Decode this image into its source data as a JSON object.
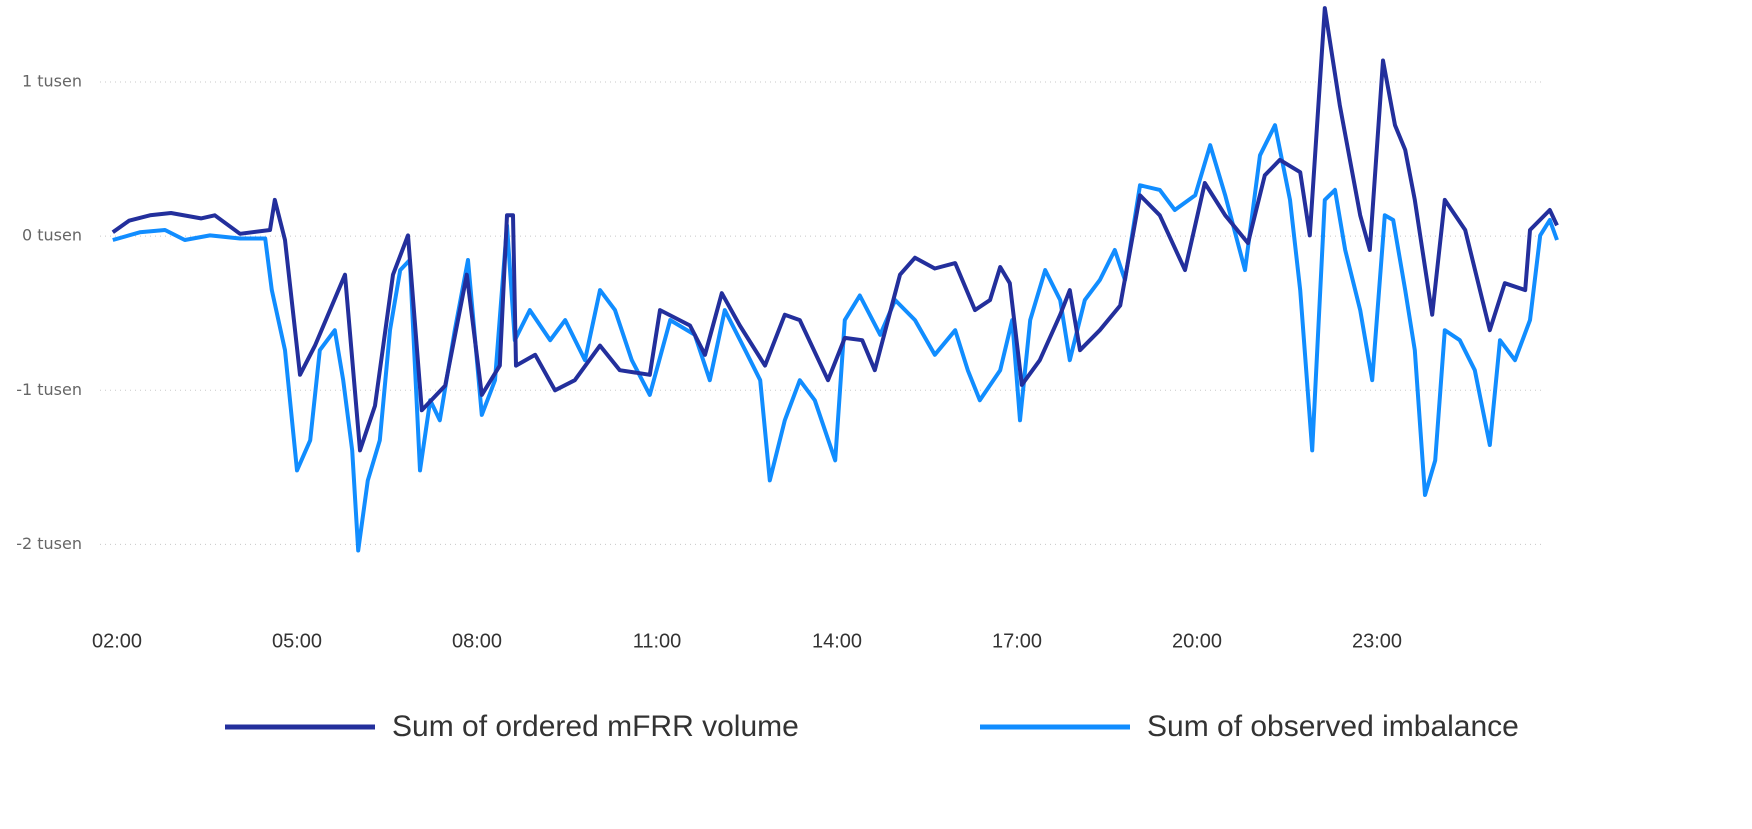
{
  "chart_data": {
    "type": "line",
    "xlim": [
      1.9,
      26.1
    ],
    "xticks": [
      {
        "value": 2,
        "label": "02:00"
      },
      {
        "value": 5,
        "label": "05:00"
      },
      {
        "value": 8,
        "label": "08:00"
      },
      {
        "value": 11,
        "label": "11:00"
      },
      {
        "value": 14,
        "label": "14:00"
      },
      {
        "value": 17,
        "label": "17:00"
      },
      {
        "value": 20,
        "label": "20:00"
      },
      {
        "value": 23,
        "label": "23:00"
      }
    ],
    "ylim": [
      -2400,
      1500
    ],
    "yticks": [
      {
        "value": -2000,
        "label": "-2 tusen"
      },
      {
        "value": -1000,
        "label": "-1 tusen"
      },
      {
        "value": 0,
        "label": "0 tusen"
      },
      {
        "value": 1000,
        "label": "1 tusen"
      }
    ],
    "grid": true,
    "legend": "bottom",
    "series": [
      {
        "name": "Sum of ordered mFRR volume",
        "color": "#232f9c",
        "x": [
          1.93,
          2.2,
          2.55,
          2.9,
          3.4,
          3.63,
          4.05,
          4.55,
          4.63,
          4.8,
          5.05,
          5.3,
          5.8,
          6.05,
          6.3,
          6.6,
          6.85,
          7.08,
          7.47,
          7.83,
          8.08,
          8.38,
          8.5,
          8.6,
          8.65,
          8.97,
          9.3,
          9.63,
          10.05,
          10.38,
          10.88,
          11.05,
          11.55,
          11.8,
          12.08,
          12.38,
          12.8,
          13.13,
          13.38,
          13.85,
          14.13,
          14.42,
          14.63,
          15.05,
          15.3,
          15.63,
          15.97,
          16.3,
          16.55,
          16.72,
          16.88,
          17.08,
          17.38,
          17.72,
          17.88,
          18.05,
          18.38,
          18.72,
          19.05,
          19.38,
          19.8,
          20.13,
          20.47,
          20.85,
          21.13,
          21.38,
          21.72,
          21.88,
          22.13,
          22.38,
          22.72,
          22.88,
          23.1,
          23.3,
          23.47,
          23.63,
          23.92,
          24.13,
          24.47,
          24.88,
          25.13,
          25.47,
          25.55,
          25.88,
          26.0
        ],
        "values": [
          25,
          100,
          135,
          150,
          115,
          135,
          15,
          40,
          235,
          -25,
          -900,
          -710,
          -250,
          -1390,
          -1100,
          -250,
          5,
          -1130,
          -970,
          -250,
          -1030,
          -840,
          135,
          135,
          -840,
          -770,
          -1000,
          -935,
          -710,
          -870,
          -900,
          -480,
          -580,
          -770,
          -370,
          -580,
          -840,
          -510,
          -545,
          -935,
          -660,
          -675,
          -870,
          -250,
          -140,
          -210,
          -175,
          -480,
          -415,
          -200,
          -305,
          -965,
          -805,
          -510,
          -350,
          -740,
          -610,
          -450,
          265,
          135,
          -220,
          345,
          135,
          -45,
          395,
          495,
          415,
          5,
          1480,
          850,
          135,
          -90,
          1140,
          720,
          560,
          235,
          -510,
          235,
          40,
          -610,
          -305,
          -350,
          40,
          170,
          70
        ]
      },
      {
        "name": "Sum of observed imbalance",
        "color": "#118dff",
        "x": [
          1.93,
          2.38,
          2.8,
          3.13,
          3.55,
          4.05,
          4.47,
          4.58,
          4.8,
          5.0,
          5.22,
          5.38,
          5.63,
          5.77,
          5.92,
          6.02,
          6.18,
          6.38,
          6.55,
          6.72,
          6.88,
          7.05,
          7.22,
          7.38,
          7.63,
          7.85,
          8.08,
          8.3,
          8.5,
          8.63,
          8.88,
          9.22,
          9.47,
          9.8,
          10.05,
          10.3,
          10.58,
          10.88,
          11.22,
          11.63,
          11.88,
          12.13,
          12.47,
          12.72,
          12.88,
          13.13,
          13.38,
          13.63,
          13.97,
          14.13,
          14.38,
          14.72,
          14.97,
          15.3,
          15.63,
          15.97,
          16.18,
          16.38,
          16.72,
          16.92,
          17.05,
          17.22,
          17.47,
          17.72,
          17.88,
          18.13,
          18.38,
          18.63,
          18.8,
          19.05,
          19.38,
          19.63,
          19.97,
          20.22,
          20.47,
          20.8,
          21.05,
          21.3,
          21.55,
          21.72,
          21.92,
          22.13,
          22.3,
          22.47,
          22.72,
          22.92,
          23.13,
          23.27,
          23.47,
          23.63,
          23.8,
          23.97,
          24.13,
          24.38,
          24.63,
          24.88,
          25.05,
          25.3,
          25.55,
          25.72,
          25.88,
          26.0
        ],
        "values": [
          -25,
          25,
          40,
          -25,
          5,
          -15,
          -15,
          -350,
          -740,
          -1520,
          -1325,
          -740,
          -610,
          -935,
          -1390,
          -2040,
          -1585,
          -1325,
          -610,
          -220,
          -155,
          -1520,
          -1065,
          -1195,
          -610,
          -155,
          -1160,
          -935,
          70,
          -675,
          -480,
          -675,
          -545,
          -805,
          -350,
          -480,
          -805,
          -1030,
          -545,
          -640,
          -935,
          -480,
          -740,
          -935,
          -1585,
          -1195,
          -935,
          -1065,
          -1455,
          -545,
          -385,
          -640,
          -415,
          -545,
          -770,
          -610,
          -870,
          -1065,
          -870,
          -545,
          -1195,
          -545,
          -220,
          -415,
          -805,
          -415,
          -285,
          -90,
          -285,
          330,
          300,
          170,
          265,
          590,
          265,
          -220,
          525,
          720,
          235,
          -350,
          -1390,
          235,
          300,
          -90,
          -480,
          -935,
          135,
          105,
          -350,
          -740,
          -1680,
          -1455,
          -610,
          -675,
          -870,
          -1355,
          -675,
          -805,
          -545,
          5,
          105,
          -25
        ]
      }
    ]
  }
}
